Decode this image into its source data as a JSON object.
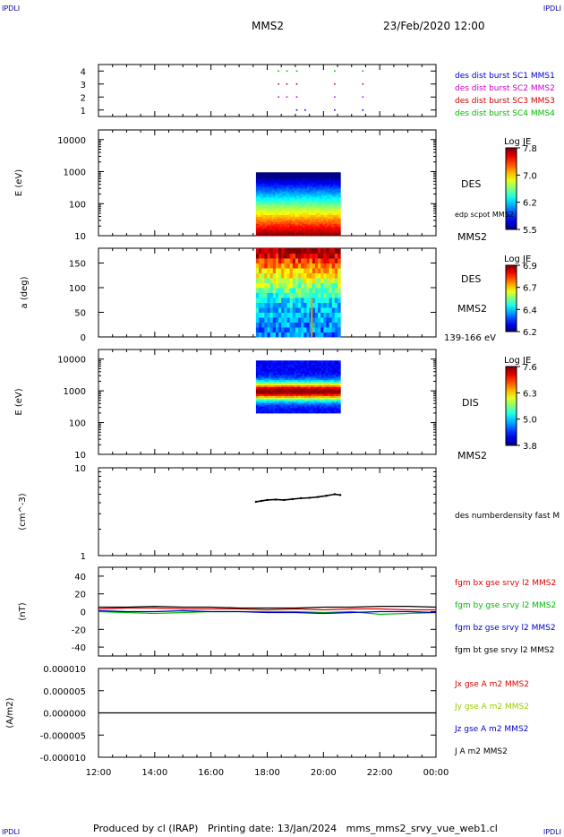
{
  "header": {
    "corner": "IPDLI",
    "title": "MMS2",
    "datetime": "23/Feb/2020 12:00"
  },
  "footer": {
    "produced_by": "Produced by cl (IRAP)",
    "printing_date": "Printing date: 13/Jan/2024",
    "filename": "mms_mms2_srvy_vue_web1.cl"
  },
  "colors": {
    "sc1": "#0000cc",
    "sc2": "#cc00cc",
    "sc3": "#cc0000",
    "sc4": "#00bb00",
    "bx": "#dd0000",
    "by": "#00bb00",
    "bz": "#0000cc",
    "bt": "#000000"
  },
  "time_axis": {
    "ticks": [
      "12:00",
      "14:00",
      "16:00",
      "18:00",
      "20:00",
      "22:00",
      "00:00"
    ],
    "range_hours": [
      12,
      24
    ]
  },
  "chart_data": [
    {
      "type": "scatter",
      "panel": "spacecraft-availability",
      "ylim": [
        0.5,
        4.5
      ],
      "yticks": [
        "1",
        "2",
        "3",
        "4"
      ],
      "series": [
        {
          "name": "des dist burst SC1 MMS1",
          "level": 1,
          "times": [
            19.05,
            19.35,
            20.4,
            21.4
          ]
        },
        {
          "name": "des dist burst SC2 MMS2",
          "level": 2,
          "times": [
            18.4,
            18.7,
            19.05,
            20.4,
            21.4
          ]
        },
        {
          "name": "des dist burst SC3 MMS3",
          "level": 3,
          "times": [
            18.4,
            18.7,
            19.05,
            20.4,
            21.4
          ]
        },
        {
          "name": "des dist burst SC4 MMS4",
          "level": 4,
          "times": [
            18.4,
            18.7,
            19.05,
            20.4,
            21.4
          ]
        }
      ]
    },
    {
      "type": "heatmap",
      "panel": "des-energy-spectrogram",
      "ylabel": "E (eV)",
      "yscale": "log",
      "ylim": [
        10,
        20000
      ],
      "yticks": [
        "10",
        "100",
        "1000",
        "10000"
      ],
      "colorbar_label": "Log JE",
      "colorbar_ticks": [
        "5.5",
        "6.2",
        "7.0",
        "7.8"
      ],
      "time_range": [
        17.6,
        20.6
      ],
      "labels": [
        "DES",
        "edp scpot MMS2",
        "MMS2"
      ]
    },
    {
      "type": "heatmap",
      "panel": "des-pitch-angle",
      "ylabel": "a (deg)",
      "ylim": [
        0,
        180
      ],
      "yticks": [
        "0",
        "50",
        "100",
        "150"
      ],
      "colorbar_label": "Log JE",
      "colorbar_ticks": [
        "6.2",
        "6.4",
        "6.7",
        "6.9"
      ],
      "time_range": [
        17.6,
        20.6
      ],
      "labels": [
        "DES",
        "MMS2",
        "139-166 eV"
      ]
    },
    {
      "type": "heatmap",
      "panel": "dis-energy-spectrogram",
      "ylabel": "E (eV)",
      "yscale": "log",
      "ylim": [
        10,
        20000
      ],
      "yticks": [
        "10",
        "100",
        "1000",
        "10000"
      ],
      "colorbar_label": "Log JE",
      "colorbar_ticks": [
        "3.8",
        "5.0",
        "6.3",
        "7.6"
      ],
      "time_range": [
        17.6,
        20.6
      ],
      "energy_range": [
        200,
        9000
      ],
      "labels": [
        "DIS",
        "MMS2"
      ]
    },
    {
      "type": "line",
      "panel": "des-density",
      "ylabel": "(cm^-3)",
      "yscale": "log",
      "ylim": [
        1,
        10
      ],
      "yticks": [
        "1",
        "10"
      ],
      "series": [
        {
          "name": "des numberdensity fast M",
          "x": [
            17.6,
            17.8,
            18.0,
            18.3,
            18.6,
            18.9,
            19.2,
            19.5,
            19.8,
            20.1,
            20.4,
            20.6
          ],
          "y": [
            4.1,
            4.2,
            4.3,
            4.35,
            4.3,
            4.4,
            4.5,
            4.55,
            4.65,
            4.8,
            5.0,
            4.9
          ]
        }
      ]
    },
    {
      "type": "line",
      "panel": "fgm-magnetic-field",
      "ylabel": "(nT)",
      "ylim": [
        -50,
        50
      ],
      "yticks": [
        "-40",
        "-20",
        "0",
        "20",
        "40"
      ],
      "series": [
        {
          "name": "fgm bx gse srvy l2 MMS2",
          "x": [
            12,
            13,
            14,
            15,
            16,
            17,
            18,
            19,
            20,
            21,
            22,
            23,
            24
          ],
          "y": [
            3,
            4,
            4,
            3,
            3,
            3,
            2,
            3,
            2,
            3,
            3,
            2,
            2
          ]
        },
        {
          "name": "fgm by gse srvy l2 MMS2",
          "x": [
            12,
            13,
            14,
            15,
            16,
            17,
            18,
            19,
            20,
            21,
            22,
            23,
            24
          ],
          "y": [
            0,
            -1,
            -2,
            -1,
            0,
            0,
            0,
            0,
            -1,
            0,
            -3,
            -2,
            -1
          ]
        },
        {
          "name": "fgm bz gse srvy l2 MMS2",
          "x": [
            12,
            13,
            14,
            15,
            16,
            17,
            18,
            19,
            20,
            21,
            22,
            23,
            24
          ],
          "y": [
            1,
            0,
            0,
            1,
            0,
            0,
            -1,
            -1,
            -2,
            -1,
            0,
            0,
            -1
          ]
        },
        {
          "name": "fgm bt gse srvy l2 MMS2",
          "x": [
            12,
            13,
            14,
            15,
            16,
            17,
            18,
            19,
            20,
            21,
            22,
            23,
            24
          ],
          "y": [
            5,
            5,
            6,
            5,
            5,
            4,
            4,
            4,
            5,
            5,
            6,
            6,
            5
          ]
        }
      ]
    },
    {
      "type": "line",
      "panel": "current-density",
      "ylabel": "(A/m2)",
      "ylim": [
        -1e-05,
        1e-05
      ],
      "yticks": [
        "-0.000010",
        "-0.000005",
        "0.000000",
        "0.000005",
        "0.000010"
      ],
      "series": [
        {
          "name": "Jx gse A m2 MMS2",
          "color": "#dd0000"
        },
        {
          "name": "Jy gse A m2 MMS2",
          "color": "#99cc00"
        },
        {
          "name": "Jz gse A m2 MMS2",
          "color": "#0000cc"
        },
        {
          "name": "J A m2 MMS2",
          "color": "#000000",
          "x": [
            12,
            14,
            16,
            18,
            20,
            22,
            24
          ],
          "y": [
            0,
            0,
            0,
            0,
            0,
            0,
            0
          ]
        }
      ]
    }
  ]
}
